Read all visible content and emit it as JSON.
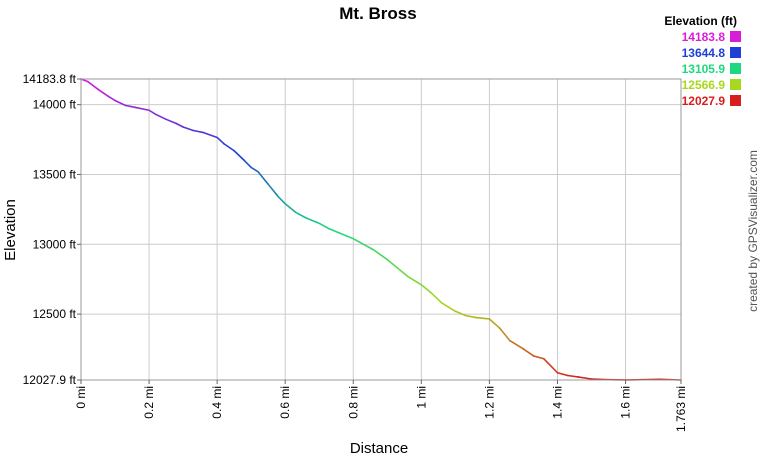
{
  "chart_data": {
    "type": "line",
    "title": "Mt. Bross",
    "xlabel": "Distance",
    "ylabel": "Elevation",
    "xlim": [
      0,
      1.763
    ],
    "ylim": [
      12027.9,
      14183.8
    ],
    "grid": true,
    "x_ticks": [
      "0 mi",
      "0.2 mi",
      "0.4 mi",
      "0.6 mi",
      "0.8 mi",
      "1 mi",
      "1.2 mi",
      "1.4 mi",
      "1.6 mi",
      "1.763 mi"
    ],
    "x_tick_values": [
      0,
      0.2,
      0.4,
      0.6,
      0.8,
      1.0,
      1.2,
      1.4,
      1.6,
      1.763
    ],
    "y_ticks": [
      "12027.9 ft",
      "12500 ft",
      "13000 ft",
      "13500 ft",
      "14000 ft",
      "14183.8 ft"
    ],
    "y_tick_values": [
      12027.9,
      12500,
      13000,
      13500,
      14000,
      14183.8
    ],
    "legend": {
      "title": "Elevation (ft)",
      "placement": "top-right",
      "entries": [
        {
          "label": "14183.8",
          "color": "#d81dd8"
        },
        {
          "label": "13644.8",
          "color": "#1d3fd8"
        },
        {
          "label": "13105.9",
          "color": "#1dd87e"
        },
        {
          "label": "12566.9",
          "color": "#a8d81d"
        },
        {
          "label": "12027.9",
          "color": "#d81d1d"
        }
      ]
    },
    "series": [
      {
        "x": [
          0,
          0.02,
          0.05,
          0.08,
          0.1,
          0.13,
          0.16,
          0.2,
          0.22,
          0.25,
          0.28,
          0.3,
          0.33,
          0.36,
          0.4,
          0.42,
          0.45,
          0.48,
          0.5,
          0.52,
          0.55,
          0.58,
          0.6,
          0.63,
          0.66,
          0.7,
          0.73,
          0.76,
          0.8,
          0.83,
          0.86,
          0.9,
          0.93,
          0.96,
          1.0,
          1.03,
          1.06,
          1.1,
          1.13,
          1.16,
          1.2,
          1.23,
          1.26,
          1.3,
          1.33,
          1.36,
          1.4,
          1.43,
          1.46,
          1.5,
          1.55,
          1.6,
          1.65,
          1.7,
          1.763
        ],
        "y": [
          14183.8,
          14165,
          14110,
          14060,
          14030,
          13995,
          13980,
          13960,
          13930,
          13895,
          13865,
          13840,
          13815,
          13800,
          13765,
          13720,
          13670,
          13600,
          13550,
          13520,
          13430,
          13340,
          13290,
          13230,
          13190,
          13150,
          13110,
          13080,
          13040,
          13000,
          12960,
          12890,
          12830,
          12770,
          12710,
          12650,
          12580,
          12520,
          12490,
          12475,
          12465,
          12400,
          12310,
          12250,
          12200,
          12180,
          12080,
          12060,
          12050,
          12035,
          12030,
          12028,
          12030,
          12033,
          12027.9
        ]
      }
    ]
  },
  "credit": "created by GPSVisualizer.com"
}
